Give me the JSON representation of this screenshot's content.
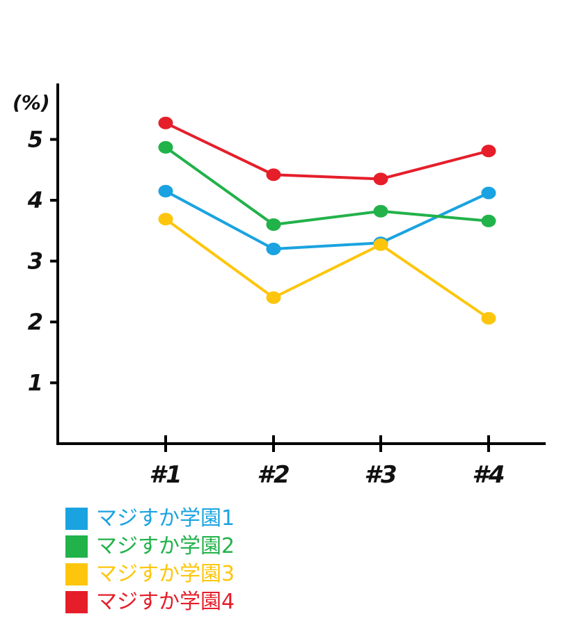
{
  "chart_data": {
    "type": "line",
    "title": "",
    "xlabel": "",
    "ylabel": "(%)",
    "categories": [
      "#1",
      "#2",
      "#3",
      "#4"
    ],
    "yticks": [
      "1",
      "2",
      "3",
      "4",
      "5"
    ],
    "ylim": [
      0,
      5.9
    ],
    "grid": false,
    "legend_position": "bottom-left",
    "series": [
      {
        "name": "マジすか学園1",
        "color": "#1aa3e0",
        "values": [
          4.15,
          3.2,
          3.3,
          4.12
        ]
      },
      {
        "name": "マジすか学園2",
        "color": "#21b24a",
        "values": [
          4.87,
          3.6,
          3.82,
          3.66
        ]
      },
      {
        "name": "マジすか学園3",
        "color": "#fdc60d",
        "values": [
          3.69,
          2.4,
          3.27,
          2.06
        ]
      },
      {
        "name": "マジすか学園4",
        "color": "#e51e2a",
        "values": [
          5.27,
          4.42,
          4.35,
          4.81
        ]
      }
    ]
  }
}
